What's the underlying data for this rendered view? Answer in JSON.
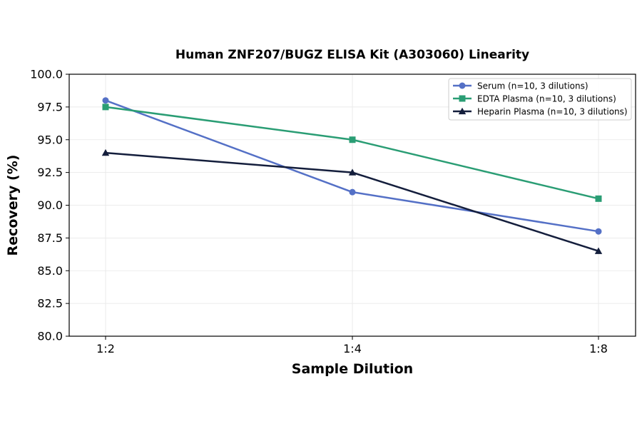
{
  "chart_data": {
    "type": "line",
    "title": "Human ZNF207/BUGZ ELISA Kit (A303060) Linearity",
    "xlabel": "Sample Dilution",
    "ylabel": "Recovery (%)",
    "categories": [
      "1:2",
      "1:4",
      "1:8"
    ],
    "ylim": [
      80.0,
      100.0
    ],
    "yticks": [
      "80.0",
      "82.5",
      "85.0",
      "87.5",
      "90.0",
      "92.5",
      "95.0",
      "97.5",
      "100.0"
    ],
    "grid": true,
    "legend_position": "top-right",
    "series": [
      {
        "name": "Serum (n=10, 3 dilutions)",
        "values": [
          98.0,
          91.0,
          88.0
        ],
        "color": "#5470c6",
        "marker": "circle"
      },
      {
        "name": "EDTA Plasma (n=10, 3 dilutions)",
        "values": [
          97.5,
          95.0,
          90.5
        ],
        "color": "#2a9d74",
        "marker": "square"
      },
      {
        "name": "Heparin Plasma (n=10, 3 dilutions)",
        "values": [
          94.0,
          92.5,
          86.5
        ],
        "color": "#141e3c",
        "marker": "triangle"
      }
    ]
  }
}
